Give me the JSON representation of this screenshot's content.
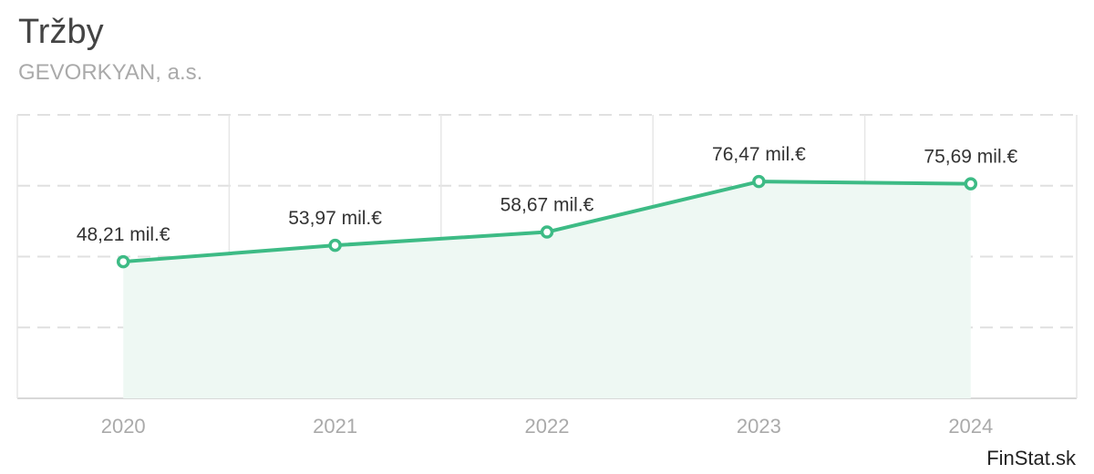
{
  "chart_data": {
    "type": "area",
    "title": "Tržby",
    "subtitle": "GEVORKYAN, a.s.",
    "categories": [
      "2020",
      "2021",
      "2022",
      "2023",
      "2024"
    ],
    "series": [
      {
        "values": [
          48.21,
          53.97,
          58.67,
          76.47,
          75.69
        ],
        "labels": [
          "48,21 mil.€",
          "53,97 mil.€",
          "58,67 mil.€",
          "76,47 mil.€",
          "75,69 mil.€"
        ]
      }
    ],
    "ylim": [
      0,
      100
    ],
    "y_gridlines": [
      25,
      50,
      75,
      100
    ],
    "y_tick_labels_visible": false,
    "grid": true,
    "legend": "none",
    "colors": {
      "line": "#3dbb85",
      "fill": "#eef8f3",
      "grid": "#e0e0e0"
    }
  },
  "source": "FinStat.sk"
}
